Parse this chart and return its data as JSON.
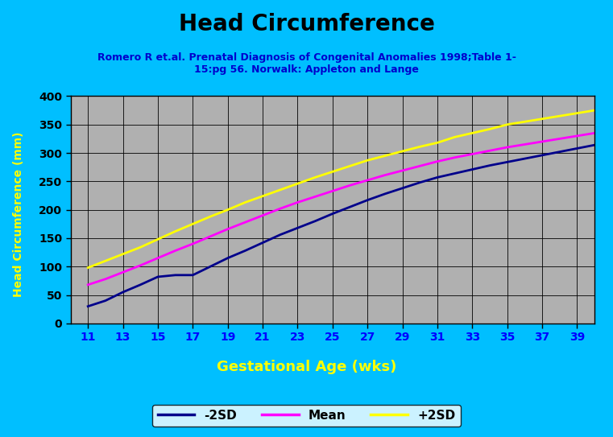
{
  "title": "Head Circumference",
  "subtitle": "Romero R et.al. Prenatal Diagnosis of Congenital Anomalies 1998;Table 1-\n15:pg 56. Norwalk: Appleton and Lange",
  "xlabel": "Gestational Age (wks)",
  "ylabel": "Head Circumference (mm)",
  "background_color": "#00BFFF",
  "plot_bg_color": "#B0B0B0",
  "title_color": "#000000",
  "subtitle_color": "#0000CC",
  "xlabel_color": "#FFFF00",
  "ylabel_color": "#FFFF00",
  "xlabel_bg": "#FF0000",
  "ylabel_bg": "#FF0000",
  "gestational_age": [
    11,
    12,
    13,
    14,
    15,
    16,
    17,
    18,
    19,
    20,
    21,
    22,
    23,
    24,
    25,
    26,
    27,
    28,
    29,
    30,
    31,
    32,
    33,
    34,
    35,
    36,
    37,
    38,
    39,
    40
  ],
  "mean": [
    68,
    78,
    90,
    102,
    115,
    128,
    140,
    153,
    166,
    178,
    190,
    202,
    213,
    223,
    233,
    243,
    252,
    261,
    269,
    277,
    285,
    292,
    298,
    304,
    310,
    315,
    320,
    325,
    330,
    335
  ],
  "minus2sd": [
    30,
    40,
    55,
    68,
    82,
    85,
    85,
    100,
    115,
    128,
    142,
    156,
    168,
    180,
    193,
    205,
    217,
    228,
    238,
    248,
    257,
    264,
    271,
    278,
    284,
    290,
    296,
    302,
    308,
    314
  ],
  "plus2sd": [
    98,
    110,
    122,
    134,
    148,
    162,
    175,
    188,
    200,
    213,
    224,
    235,
    246,
    257,
    267,
    277,
    287,
    295,
    303,
    311,
    318,
    328,
    335,
    342,
    350,
    355,
    360,
    365,
    370,
    375
  ],
  "ylim": [
    0,
    400
  ],
  "xlim": [
    10,
    40
  ],
  "xticks": [
    11,
    13,
    15,
    17,
    19,
    21,
    23,
    25,
    27,
    29,
    31,
    33,
    35,
    37,
    39
  ],
  "yticks": [
    0,
    50,
    100,
    150,
    200,
    250,
    300,
    350,
    400
  ],
  "minus2sd_color": "#00008B",
  "mean_color": "#FF00FF",
  "plus2sd_color": "#FFFF00",
  "legend_labels": [
    "-2SD",
    "Mean",
    "+2SD"
  ]
}
